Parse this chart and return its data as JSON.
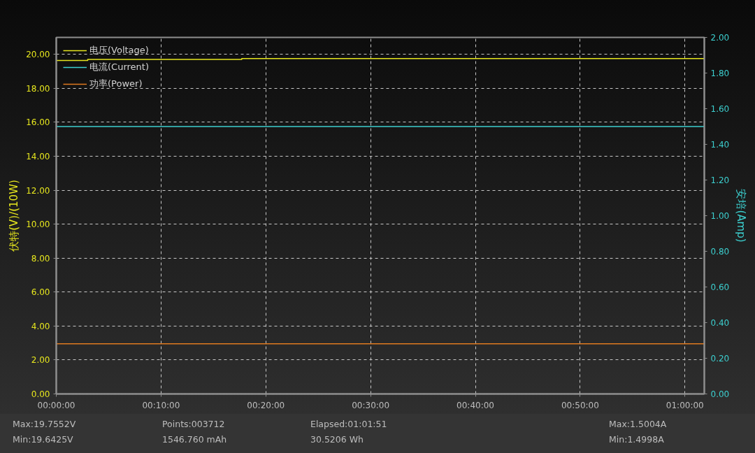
{
  "chart_data": {
    "type": "line",
    "ylabel": "伏特(V)/(10W)",
    "y2label": "安培(Amp)",
    "xlim": [
      0,
      1.0308
    ],
    "xticks": [
      {
        "value": 0,
        "label": "00:00:00"
      },
      {
        "value": 0.16667,
        "label": "00:10:00"
      },
      {
        "value": 0.33333,
        "label": "00:20:00"
      },
      {
        "value": 0.5,
        "label": "00:30:00"
      },
      {
        "value": 0.66667,
        "label": "00:40:00"
      },
      {
        "value": 0.83333,
        "label": "00:50:00"
      },
      {
        "value": 1,
        "label": "01:00:00"
      }
    ],
    "ylim": [
      0,
      21
    ],
    "yticks": [
      {
        "value": 0,
        "label": "0.00"
      },
      {
        "value": 2,
        "label": "2.00"
      },
      {
        "value": 4,
        "label": "4.00"
      },
      {
        "value": 6,
        "label": "6.00"
      },
      {
        "value": 8,
        "label": "8.00"
      },
      {
        "value": 10,
        "label": "10.00"
      },
      {
        "value": 12,
        "label": "12.00"
      },
      {
        "value": 14,
        "label": "14.00"
      },
      {
        "value": 16,
        "label": "16.00"
      },
      {
        "value": 18,
        "label": "18.00"
      },
      {
        "value": 20,
        "label": "20.00"
      }
    ],
    "y2lim": [
      0,
      2
    ],
    "y2ticks": [
      {
        "value": 0,
        "label": "0.00"
      },
      {
        "value": 0.2,
        "label": "0.20"
      },
      {
        "value": 0.4,
        "label": "0.40"
      },
      {
        "value": 0.6,
        "label": "0.60"
      },
      {
        "value": 0.8,
        "label": "0.80"
      },
      {
        "value": 1,
        "label": "1.00"
      },
      {
        "value": 1.2,
        "label": "1.20"
      },
      {
        "value": 1.4,
        "label": "1.40"
      },
      {
        "value": 1.6,
        "label": "1.60"
      },
      {
        "value": 1.8,
        "label": "1.80"
      },
      {
        "value": 2,
        "label": "2.00"
      }
    ],
    "series": [
      {
        "name": "电压(Voltage)",
        "type": "step",
        "color": "#e6e61e",
        "x": [
          0,
          0.05,
          0.295,
          1.0308
        ],
        "values": [
          19.64,
          19.7,
          19.75,
          19.75
        ]
      },
      {
        "name": "电流(Current)",
        "color": "#3ccfcf",
        "axis": "y2",
        "x": [
          0,
          1.0308
        ],
        "values": [
          1.5,
          1.5
        ]
      },
      {
        "name": "功率(Power)",
        "color": "#e07a1f",
        "x": [
          0,
          1.0308
        ],
        "values": [
          2.95,
          2.95
        ]
      }
    ],
    "legend": "top left",
    "grid": true,
    "annotations": [
      "Max:19.7552V",
      "Min:19.6425V",
      "Points:003712",
      "1546.760 mAh",
      "Elapsed:01:01:51",
      "30.5206 Wh",
      "Max:1.5004A",
      "Min:1.4998A"
    ]
  }
}
